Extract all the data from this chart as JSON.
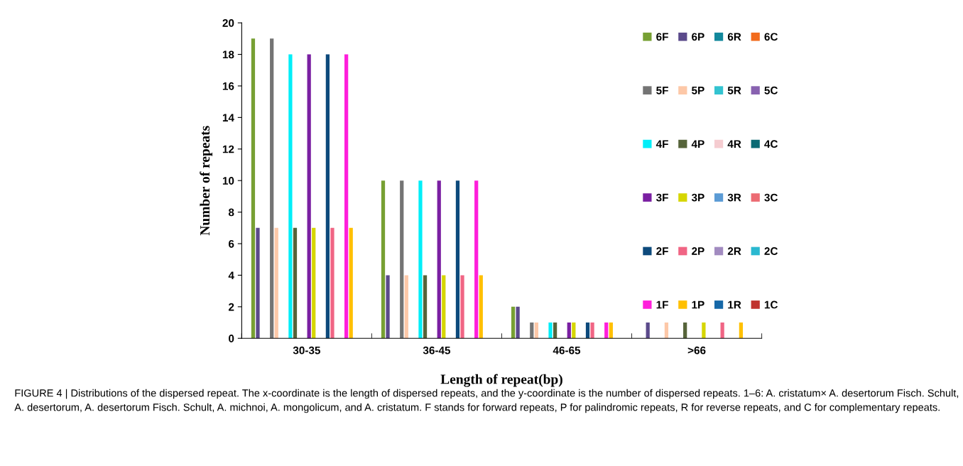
{
  "chart_data": {
    "type": "bar",
    "xlabel": "Length of repeat(bp)",
    "ylabel": "Number of repeats",
    "categories": [
      "30-35",
      "36-45",
      "46-65",
      ">66"
    ],
    "ylim": [
      0,
      20
    ],
    "yticks": [
      0,
      2,
      4,
      6,
      8,
      10,
      12,
      14,
      16,
      18,
      20
    ],
    "grid": false,
    "legend": "top right",
    "series": [
      {
        "name": "6F",
        "color": "#77a033",
        "values": [
          19,
          10,
          2,
          0
        ]
      },
      {
        "name": "6P",
        "color": "#5b4a8b",
        "values": [
          7,
          4,
          2,
          1
        ]
      },
      {
        "name": "6R",
        "color": "#12889c",
        "values": [
          0,
          0,
          0,
          0
        ]
      },
      {
        "name": "6C",
        "color": "#f26b1d",
        "values": [
          0,
          0,
          0,
          0
        ]
      },
      {
        "name": "5F",
        "color": "#747474",
        "values": [
          19,
          10,
          1,
          0
        ]
      },
      {
        "name": "5P",
        "color": "#fdc8a8",
        "values": [
          7,
          4,
          1,
          1
        ]
      },
      {
        "name": "5R",
        "color": "#33c3d0",
        "values": [
          0,
          0,
          0,
          0
        ]
      },
      {
        "name": "5C",
        "color": "#8862b0",
        "values": [
          0,
          0,
          0,
          0
        ]
      },
      {
        "name": "4F",
        "color": "#00eef8",
        "values": [
          18,
          10,
          1,
          0
        ]
      },
      {
        "name": "4P",
        "color": "#56643a",
        "values": [
          7,
          4,
          1,
          1
        ]
      },
      {
        "name": "4R",
        "color": "#f5ccd0",
        "values": [
          0,
          0,
          0,
          0
        ]
      },
      {
        "name": "4C",
        "color": "#0b6a74",
        "values": [
          0,
          0,
          0,
          0
        ]
      },
      {
        "name": "3F",
        "color": "#7a1fa2",
        "values": [
          18,
          10,
          1,
          0
        ]
      },
      {
        "name": "3P",
        "color": "#d6d600",
        "values": [
          7,
          4,
          1,
          1
        ]
      },
      {
        "name": "3R",
        "color": "#5b9bd5",
        "values": [
          0,
          0,
          0,
          0
        ]
      },
      {
        "name": "3C",
        "color": "#ec6b73",
        "values": [
          0,
          0,
          0,
          0
        ]
      },
      {
        "name": "2F",
        "color": "#0d4a7c",
        "values": [
          18,
          10,
          1,
          0
        ]
      },
      {
        "name": "2P",
        "color": "#f06584",
        "values": [
          7,
          4,
          1,
          1
        ]
      },
      {
        "name": "2R",
        "color": "#a28bc0",
        "values": [
          0,
          0,
          0,
          0
        ]
      },
      {
        "name": "2C",
        "color": "#2ab8d0",
        "values": [
          0,
          0,
          0,
          0
        ]
      },
      {
        "name": "1F",
        "color": "#ff1fdb",
        "values": [
          18,
          10,
          1,
          0
        ]
      },
      {
        "name": "1P",
        "color": "#ffc000",
        "values": [
          7,
          4,
          1,
          1
        ]
      },
      {
        "name": "1R",
        "color": "#1668a8",
        "values": [
          0,
          0,
          0,
          0
        ]
      },
      {
        "name": "1C",
        "color": "#c0332e",
        "values": [
          0,
          0,
          0,
          0
        ]
      }
    ],
    "annotations": [
      "FIGURE 4 | Distributions of the dispersed repeat. The x-coordinate is the length of dispersed repeats, and the y-coordinate is the number of dispersed repeats. 1–6: A. cristatum× A. desertorum Fisch. Schult, A. desertorum, A. desertorum Fisch. Schult, A. michnoi, A. mongolicum, and A. cristatum. F stands for forward repeats, P for palindromic repeats, R for reverse repeats, and C for complementary repeats."
    ]
  }
}
